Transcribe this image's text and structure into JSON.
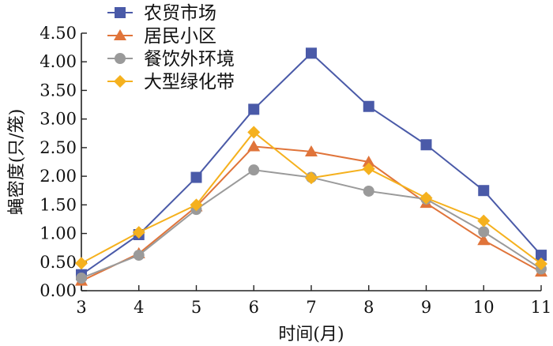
{
  "chart_data": {
    "type": "line",
    "title": "",
    "xlabel": "时间(月)",
    "ylabel": "蝇密度(只/笼)",
    "x": [
      3,
      4,
      5,
      6,
      7,
      8,
      9,
      10,
      11
    ],
    "xlim": [
      3,
      11
    ],
    "ylim": [
      0,
      4.5
    ],
    "yticks": [
      "0.00",
      "0.50",
      "1.00",
      "1.50",
      "2.00",
      "2.50",
      "3.00",
      "3.50",
      "4.00",
      "4.50"
    ],
    "xticks": [
      "3",
      "4",
      "5",
      "6",
      "7",
      "8",
      "9",
      "10",
      "11"
    ],
    "grid": false,
    "legend_position": "top-left",
    "series": [
      {
        "name": "农贸市场",
        "marker": "square",
        "color": "#4a5aa8",
        "values": [
          0.28,
          0.98,
          1.98,
          3.17,
          4.15,
          3.22,
          2.55,
          1.75,
          0.62
        ]
      },
      {
        "name": "居民小区",
        "marker": "triangle",
        "color": "#e0743a",
        "values": [
          0.17,
          0.65,
          1.47,
          2.52,
          2.43,
          2.25,
          1.53,
          0.88,
          0.33
        ]
      },
      {
        "name": "餐饮外环境",
        "marker": "circle",
        "color": "#9a9a9a",
        "values": [
          0.22,
          0.62,
          1.42,
          2.11,
          1.98,
          1.74,
          1.6,
          1.03,
          0.38
        ]
      },
      {
        "name": "大型绿化带",
        "marker": "diamond",
        "color": "#f5b11e",
        "values": [
          0.48,
          1.02,
          1.5,
          2.77,
          1.97,
          2.13,
          1.62,
          1.22,
          0.47
        ]
      }
    ]
  }
}
